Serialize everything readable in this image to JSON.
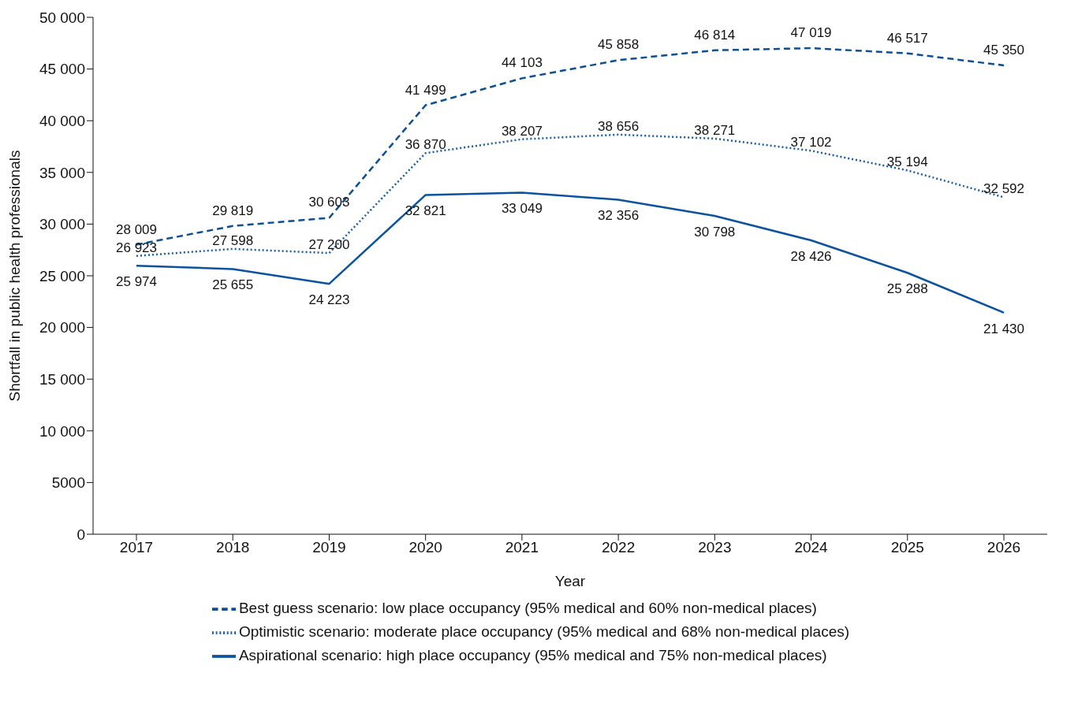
{
  "chart_data": {
    "type": "line",
    "xlabel": "Year",
    "ylabel": "Shortfall in public health professionals",
    "categories": [
      "2017",
      "2018",
      "2019",
      "2020",
      "2021",
      "2022",
      "2023",
      "2024",
      "2025",
      "2026"
    ],
    "ylim": [
      0,
      50000
    ],
    "yticks": [
      0,
      {
        "value": 5000,
        "label": "5000"
      },
      {
        "value": 10000,
        "label": "10 000"
      },
      {
        "value": 15000,
        "label": "15 000"
      },
      {
        "value": 20000,
        "label": "20 000"
      },
      {
        "value": 25000,
        "label": "25 000"
      },
      {
        "value": 30000,
        "label": "30 000"
      },
      {
        "value": 35000,
        "label": "35 000"
      },
      {
        "value": 40000,
        "label": "40 000"
      },
      {
        "value": 45000,
        "label": "45 000"
      },
      {
        "value": 50000,
        "label": "50 000"
      }
    ],
    "series": [
      {
        "name": "Best guess scenario: low place occupancy (95% medical and 60% non-medical places)",
        "color": "#0d4f94",
        "line_style": "dashed",
        "values": [
          28009,
          29819,
          30603,
          41499,
          44103,
          45858,
          46814,
          47019,
          46517,
          45350
        ],
        "value_labels": [
          "28 009",
          "29 819",
          "30 603",
          "41 499",
          "44 103",
          "45 858",
          "46 814",
          "47 019",
          "46 517",
          "45 350"
        ]
      },
      {
        "name": "Optimistic scenario: moderate place occupancy (95% medical and 68% non-medical places)",
        "color": "#175ea6",
        "line_style": "dotted",
        "values": [
          26923,
          27598,
          27200,
          36870,
          38207,
          38656,
          38271,
          37102,
          35194,
          32592
        ],
        "value_labels": [
          "26 923",
          "27 598",
          "27 200",
          "36 870",
          "38 207",
          "38 656",
          "38 271",
          "37 102",
          "35 194",
          "32 592"
        ]
      },
      {
        "name": "Aspirational scenario: high place occupancy (95% medical and 75% non-medical places)",
        "color": "#0b539e",
        "line_style": "solid",
        "values": [
          25974,
          25655,
          24223,
          32821,
          33049,
          32356,
          30798,
          28426,
          25288,
          21430
        ],
        "value_labels": [
          "25 974",
          "25 655",
          "24 223",
          "32 821",
          "33 049",
          "32 356",
          "30 798",
          "28 426",
          "25 288",
          "21 430"
        ]
      }
    ],
    "grid": false,
    "marker": "none",
    "legend": "bottom"
  }
}
